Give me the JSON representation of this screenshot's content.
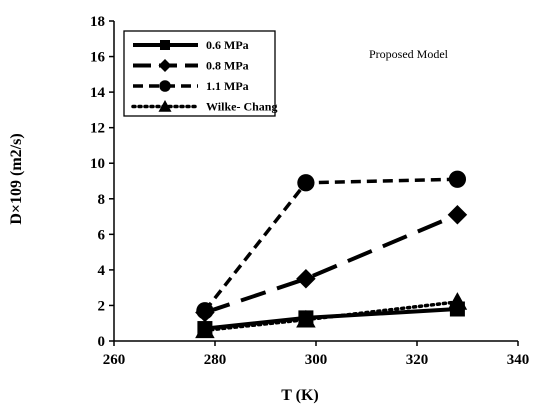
{
  "chart_data": {
    "type": "line",
    "xlabel": "T (K)",
    "ylabel": "D×109 (m2/s)",
    "xlim": [
      260,
      340
    ],
    "ylim": [
      0,
      18
    ],
    "x_ticks": [
      "260",
      "280",
      "300",
      "320",
      "340"
    ],
    "y_ticks": [
      "0",
      "2",
      "4",
      "6",
      "8",
      "10",
      "12",
      "14",
      "16",
      "18"
    ],
    "grid": false,
    "legend_position": "top-left",
    "annotation": "Proposed Model",
    "series": [
      {
        "name": "0.6 MPa",
        "x": [
          278,
          298,
          328
        ],
        "y": [
          0.7,
          1.3,
          1.8
        ],
        "marker": "square",
        "line": "solid",
        "color": "#000000"
      },
      {
        "name": "0.8 MPa",
        "x": [
          278,
          298,
          328
        ],
        "y": [
          1.6,
          3.5,
          7.1
        ],
        "marker": "diamond",
        "line": "long-dash",
        "color": "#000000"
      },
      {
        "name": "1.1 MPa",
        "x": [
          278,
          298,
          328
        ],
        "y": [
          1.7,
          8.9,
          9.1
        ],
        "marker": "circle",
        "line": "dash",
        "color": "#000000"
      },
      {
        "name": "Wilke- Chang",
        "x": [
          278,
          298,
          328
        ],
        "y": [
          0.6,
          1.2,
          2.2
        ],
        "marker": "triangle",
        "line": "dotted",
        "color": "#000000"
      }
    ]
  }
}
